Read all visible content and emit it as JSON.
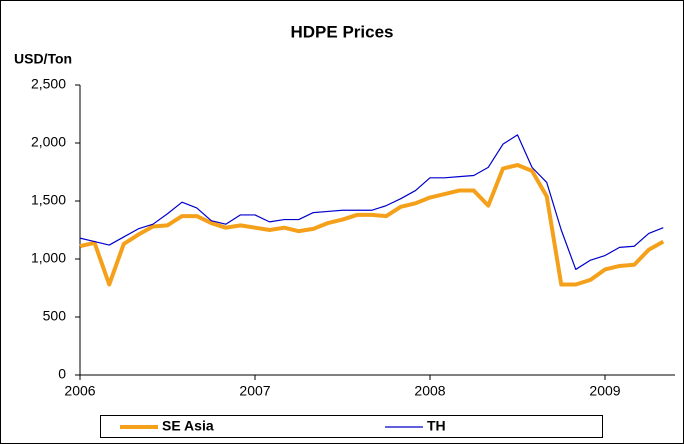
{
  "chart_data": {
    "type": "line",
    "title": "HDPE Prices",
    "y_label": "USD/Ton",
    "x": [
      2006,
      2006.083,
      2006.167,
      2006.25,
      2006.333,
      2006.417,
      2006.5,
      2006.583,
      2006.667,
      2006.75,
      2006.833,
      2006.917,
      2007,
      2007.083,
      2007.167,
      2007.25,
      2007.333,
      2007.417,
      2007.5,
      2007.583,
      2007.667,
      2007.75,
      2007.833,
      2007.917,
      2008,
      2008.083,
      2008.167,
      2008.25,
      2008.333,
      2008.417,
      2008.5,
      2008.583,
      2008.667,
      2008.75,
      2008.833,
      2008.917,
      2009,
      2009.083,
      2009.167,
      2009.25,
      2009.333
    ],
    "series": [
      {
        "name": "SE Asia",
        "color": "#f5a01a",
        "values": [
          1110,
          1140,
          780,
          1130,
          1210,
          1280,
          1290,
          1370,
          1370,
          1310,
          1270,
          1290,
          1270,
          1250,
          1270,
          1240,
          1260,
          1310,
          1340,
          1380,
          1380,
          1370,
          1450,
          1480,
          1530,
          1560,
          1590,
          1590,
          1460,
          1780,
          1810,
          1760,
          1540,
          780,
          780,
          820,
          910,
          940,
          950,
          1080,
          1150
        ]
      },
      {
        "name": "TH",
        "color": "#0000cc",
        "values": [
          1180,
          1150,
          1120,
          1190,
          1260,
          1300,
          1390,
          1490,
          1440,
          1330,
          1300,
          1380,
          1380,
          1320,
          1340,
          1340,
          1400,
          1410,
          1420,
          1420,
          1420,
          1460,
          1520,
          1590,
          1700,
          1700,
          1710,
          1720,
          1790,
          1990,
          2070,
          1790,
          1660,
          1250,
          910,
          990,
          1030,
          1100,
          1110,
          1220,
          1270
        ]
      }
    ],
    "xlim": [
      2006,
      2009.4
    ],
    "xticks": [
      2006,
      2007,
      2008,
      2009
    ],
    "ylim": [
      0,
      2500
    ],
    "yticks": [
      0,
      500,
      {
        "value": 1000,
        "label": "1,000"
      },
      {
        "value": 1500,
        "label": "1,500"
      },
      {
        "value": 2000,
        "label": "2,000"
      },
      {
        "value": 2500,
        "label": "2,500"
      }
    ],
    "legend": "bottom"
  }
}
